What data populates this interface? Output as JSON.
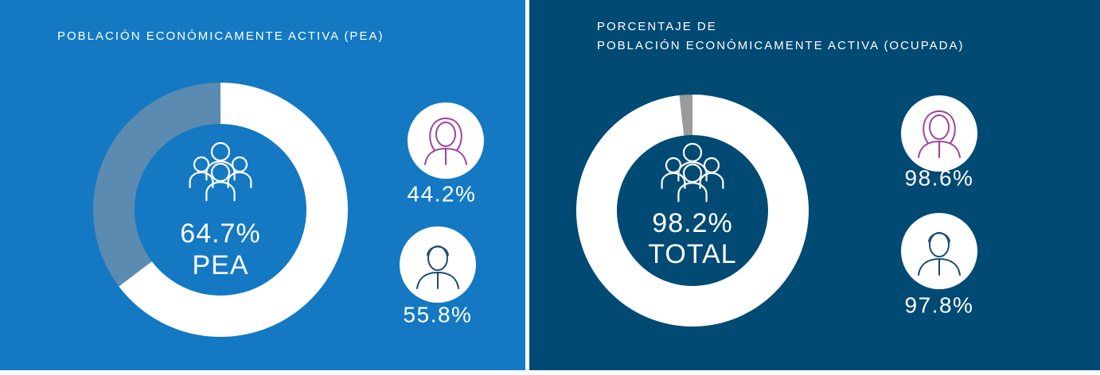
{
  "chart_data": [
    {
      "type": "donut",
      "title": [
        "POBLACIÓN ECONÓMICAMENTE ACTIVA (PEA)"
      ],
      "values": [
        64.7
      ],
      "value_labels": [
        "64.7%"
      ],
      "center_label": "PEA",
      "color": "#ffffff",
      "track_color": "#5b8bb1",
      "background": "#1479c2",
      "breakdown": {
        "values": [
          44.2,
          55.8
        ],
        "value_labels": [
          "44.2%",
          "55.8%"
        ]
      }
    },
    {
      "type": "donut",
      "title": [
        "PORCENTAJE DE",
        "POBLACIÓN ECONÓMICAMENTE ACTIVA (OCUPADA)"
      ],
      "values": [
        98.2
      ],
      "value_labels": [
        "98.2%"
      ],
      "center_label": "TOTAL",
      "color": "#ffffff",
      "track_color": "#9a9a9a",
      "background": "#004a74",
      "breakdown": {
        "values": [
          98.6,
          97.8
        ],
        "value_labels": [
          "98.6%",
          "97.8%"
        ]
      }
    }
  ]
}
